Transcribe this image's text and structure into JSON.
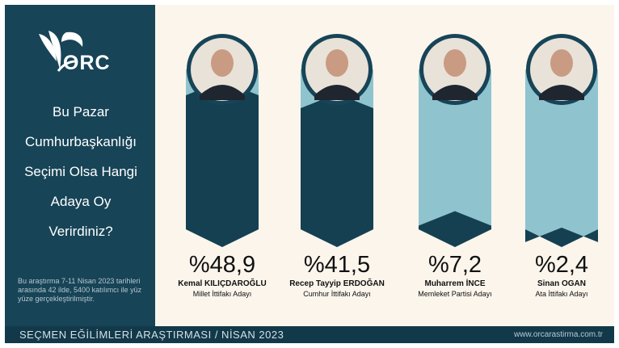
{
  "brand": {
    "logo_text": "ORC"
  },
  "sidebar": {
    "question": "Bu Pazar Cumhurbaşkanlığı Seçimi Olsa Hangi Adaya Oy Verirdiniz?",
    "question_lines": [
      "Bu Pazar",
      "Cumhurbaşkanlığı",
      "Seçimi Olsa Hangi",
      "Adaya Oy",
      "Verirdiniz?"
    ],
    "note": "Bu araştırma 7-11 Nisan 2023 tarihleri arasında 42 ilde, 5400 katılımcı ile yüz yüze gerçekleştirilmiştir."
  },
  "footer": {
    "title": "SEÇMEN EĞİLİMLERİ ARAŞTIRMASI / NİSAN 2023",
    "url": "www.orcarastirma.com.tr"
  },
  "colors": {
    "panel": "#174457",
    "background": "#fbf5ec",
    "bar_light": "#8fc4cf",
    "bar_dark": "#154052"
  },
  "chart_data": {
    "type": "bar",
    "title": "",
    "categories": [
      "Kemal KILIÇDAROĞLU",
      "Recep Tayyip ERDOĞAN",
      "Muharrem İNCE",
      "Sinan OGAN"
    ],
    "values": [
      48.9,
      41.5,
      7.2,
      2.4
    ],
    "value_labels": [
      "%48,9",
      "%41,5",
      "%7,2",
      "%2,4"
    ],
    "subtitles": [
      "Millet İttifakı Adayı",
      "Cumhur İttifakı Adayı",
      "Memleket Partisi Adayı",
      "Ata İttifakı Adayı"
    ],
    "ylim": [
      0,
      100
    ],
    "grid": false,
    "legend": "none"
  }
}
